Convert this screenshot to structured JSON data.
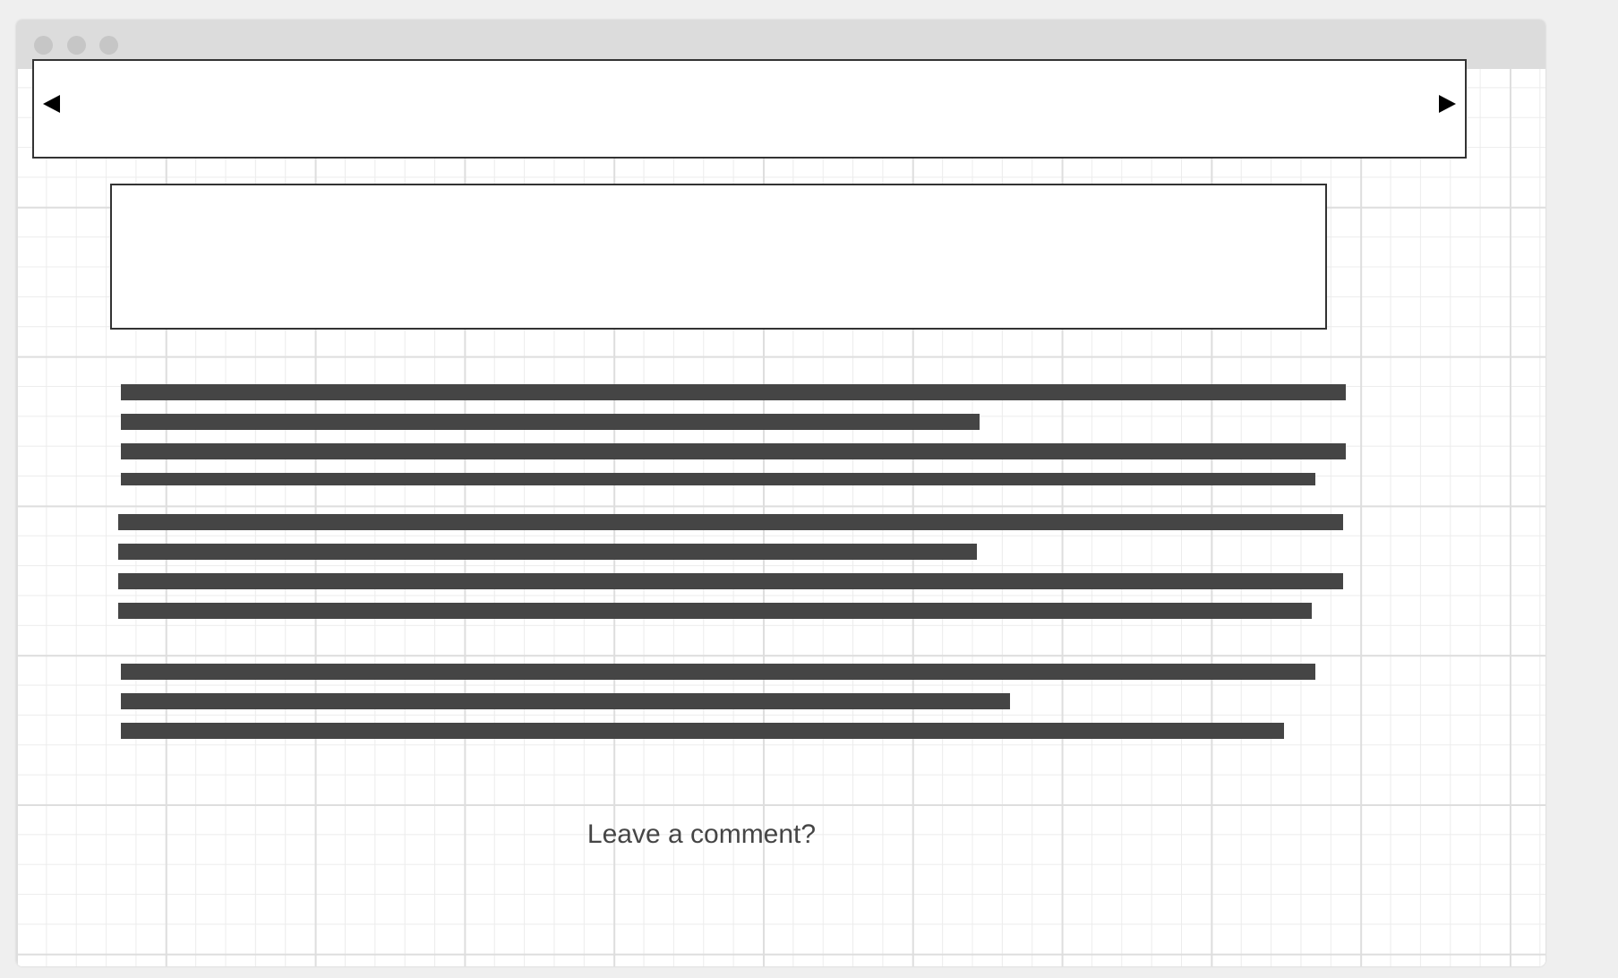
{
  "footer": {
    "comment_label": "Leave a comment?"
  },
  "colors": {
    "page_bg": "#efefef",
    "titlebar": "#dcdcdc",
    "window_dot": "#c6c6c6",
    "text_bar": "#454545",
    "outline": "#333333",
    "grid_major": "#dedede",
    "grid_minor": "#ececec"
  },
  "icons": {
    "carousel_prev": "triangle-left",
    "carousel_next": "triangle-right"
  }
}
